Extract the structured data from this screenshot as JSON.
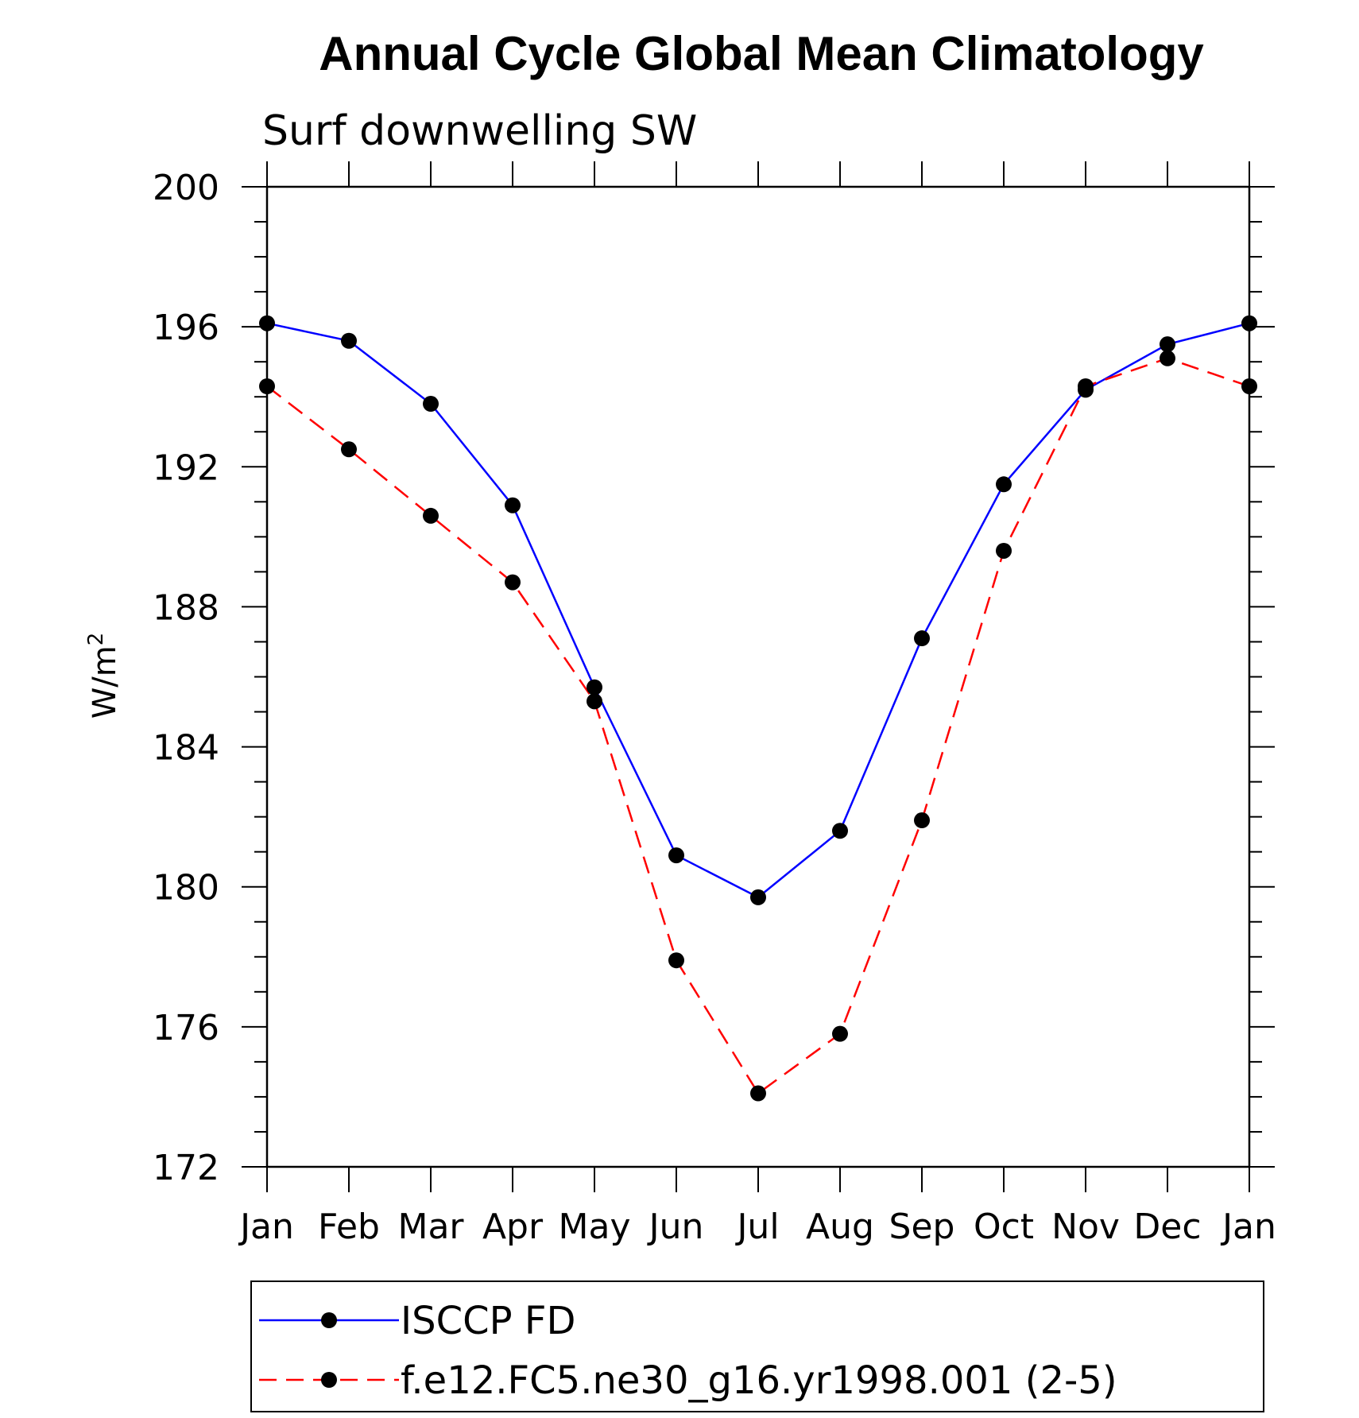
{
  "chart_data": {
    "type": "line",
    "title": "Annual Cycle Global Mean Climatology",
    "subtitle": "Surf downwelling SW",
    "ylabel": "W/m",
    "ylabel_sup": "2",
    "ylim": [
      172,
      200
    ],
    "yticks": [
      172,
      176,
      180,
      184,
      188,
      192,
      196,
      200
    ],
    "categories": [
      "Jan",
      "Feb",
      "Mar",
      "Apr",
      "May",
      "Jun",
      "Jul",
      "Aug",
      "Sep",
      "Oct",
      "Nov",
      "Dec",
      "Jan"
    ],
    "series": [
      {
        "name": "ISCCP FD",
        "color": "#0000ff",
        "dash": "solid",
        "values": [
          196.1,
          195.6,
          193.8,
          190.9,
          185.7,
          180.9,
          179.7,
          181.6,
          187.1,
          191.5,
          194.2,
          195.5,
          196.1
        ]
      },
      {
        "name": "f.e12.FC5.ne30_g16.yr1998.001 (2-5)",
        "color": "#ff0000",
        "dash": "dashed",
        "values": [
          194.3,
          192.5,
          190.6,
          188.7,
          185.3,
          177.9,
          174.1,
          175.8,
          181.9,
          189.6,
          194.3,
          195.1,
          194.3
        ]
      }
    ]
  }
}
